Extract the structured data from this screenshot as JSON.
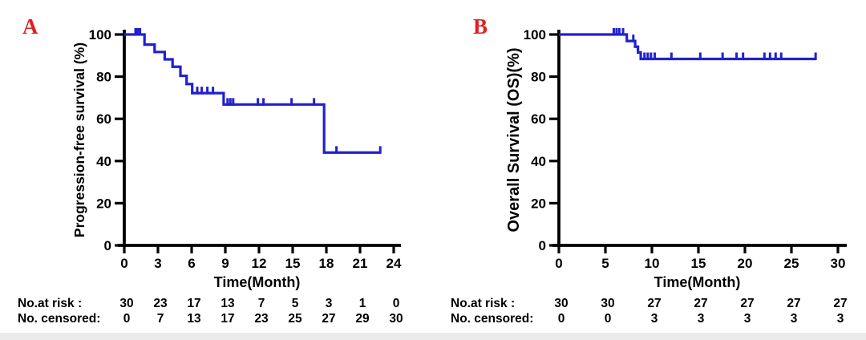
{
  "figure": {
    "background_color": "#ffffff",
    "bottom_strip_color": "#ebebeb",
    "curve_color": "#2121ce",
    "axis_color": "#000000",
    "panel_label_color": "#e02020"
  },
  "chart_data": [
    {
      "type": "line",
      "subtype": "kaplan_meier_step",
      "panel_label": "A",
      "title": "",
      "xlabel": "Time(Month)",
      "ylabel": "Progression-free survival (%)",
      "xlim": [
        0,
        24
      ],
      "xticks": [
        0,
        3,
        6,
        9,
        12,
        15,
        18,
        21,
        24
      ],
      "ylim": [
        0,
        100
      ],
      "yticks": [
        0,
        20,
        40,
        60,
        80,
        100
      ],
      "grid": false,
      "legend": "none",
      "series": [
        {
          "name": "Progression-free survival",
          "color": "#2121ce",
          "steps": [
            [
              0,
              100
            ],
            [
              1.8,
              95.2
            ],
            [
              2.7,
              91.7
            ],
            [
              3.6,
              88.2
            ],
            [
              4.3,
              84.7
            ],
            [
              5.0,
              80.4
            ],
            [
              5.55,
              76.5
            ],
            [
              6.05,
              72.2
            ],
            [
              8.85,
              66.8
            ],
            [
              17.8,
              44.0
            ]
          ],
          "end_time": 22.8,
          "censor_marks": [
            [
              1.0,
              100
            ],
            [
              1.2,
              100
            ],
            [
              1.4,
              100
            ],
            [
              6.5,
              72.2
            ],
            [
              6.9,
              72.2
            ],
            [
              7.4,
              72.2
            ],
            [
              7.9,
              72.2
            ],
            [
              9.2,
              66.8
            ],
            [
              9.45,
              66.8
            ],
            [
              9.7,
              66.8
            ],
            [
              11.9,
              66.8
            ],
            [
              12.4,
              66.8
            ],
            [
              14.9,
              66.8
            ],
            [
              16.9,
              66.8
            ],
            [
              18.9,
              44.0
            ],
            [
              22.8,
              44.0
            ]
          ]
        }
      ],
      "risk_table": [
        {
          "label": "No.at risk :",
          "values": [
            "30",
            "23",
            "17",
            "13",
            "7",
            "5",
            "3",
            "1",
            "0"
          ]
        },
        {
          "label": "No. censored:",
          "values": [
            "0",
            "7",
            "13",
            "17",
            "23",
            "25",
            "27",
            "29",
            "30"
          ]
        }
      ]
    },
    {
      "type": "line",
      "subtype": "kaplan_meier_step",
      "panel_label": "B",
      "title": "",
      "xlabel": "Time(Month)",
      "ylabel": "Overall Survival (OS)(%)",
      "xlim": [
        0,
        30
      ],
      "xticks": [
        0,
        5,
        10,
        15,
        20,
        25,
        30
      ],
      "ylim": [
        0,
        100
      ],
      "yticks": [
        0,
        20,
        40,
        60,
        80,
        100
      ],
      "grid": false,
      "legend": "none",
      "series": [
        {
          "name": "Overall survival",
          "color": "#2121ce",
          "steps": [
            [
              0,
              100
            ],
            [
              7.3,
              96.9
            ],
            [
              8.2,
              94.2
            ],
            [
              8.5,
              91.5
            ],
            [
              8.8,
              88.4
            ]
          ],
          "end_time": 27.6,
          "censor_marks": [
            [
              5.9,
              100
            ],
            [
              6.2,
              100
            ],
            [
              6.5,
              100
            ],
            [
              6.9,
              100
            ],
            [
              8.0,
              96.9
            ],
            [
              9.2,
              88.4
            ],
            [
              9.55,
              88.4
            ],
            [
              9.9,
              88.4
            ],
            [
              10.3,
              88.4
            ],
            [
              12.1,
              88.4
            ],
            [
              15.2,
              88.4
            ],
            [
              17.6,
              88.4
            ],
            [
              19.1,
              88.4
            ],
            [
              19.8,
              88.4
            ],
            [
              22.1,
              88.4
            ],
            [
              22.7,
              88.4
            ],
            [
              23.3,
              88.4
            ],
            [
              23.9,
              88.4
            ],
            [
              27.6,
              88.4
            ]
          ]
        }
      ],
      "risk_table": [
        {
          "label": "No.at risk :",
          "values": [
            "30",
            "30",
            "27",
            "27",
            "27",
            "27",
            "27"
          ]
        },
        {
          "label": "No. censored:",
          "values": [
            "0",
            "0",
            "3",
            "3",
            "3",
            "3",
            "3"
          ]
        }
      ]
    }
  ]
}
